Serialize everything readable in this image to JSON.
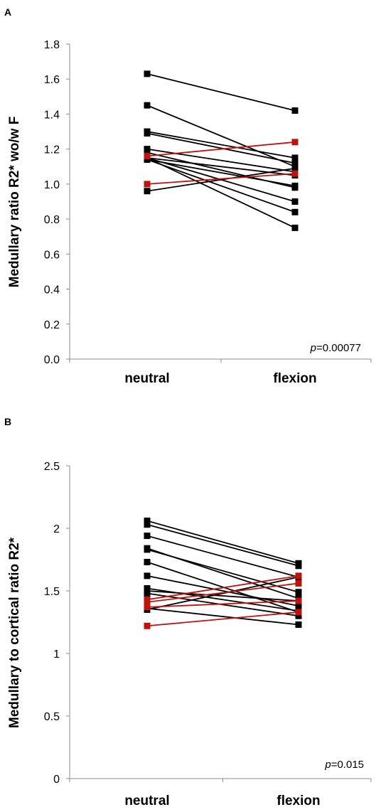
{
  "colors": {
    "black_series": "#000000",
    "red_series": "#c0120d",
    "axis": "#8c8c8c"
  },
  "chart_data": [
    {
      "panel_label": "A",
      "type": "line",
      "categories": [
        "neutral",
        "flexion"
      ],
      "ylabel": "Medullary ratio R2* wo/w F",
      "ylim": [
        0,
        1.8
      ],
      "yticks": [
        "0.0",
        "0.2",
        "0.4",
        "0.6",
        "0.8",
        "1.0",
        "1.2",
        "1.4",
        "1.6",
        "1.8"
      ],
      "ytick_values": [
        0,
        0.2,
        0.4,
        0.6,
        0.8,
        1.0,
        1.2,
        1.4,
        1.6,
        1.8
      ],
      "annotation_p": "p",
      "annotation_value": "=0.00077",
      "grid": false,
      "series": [
        {
          "values": [
            1.63,
            1.42
          ],
          "color": "black"
        },
        {
          "values": [
            1.45,
            1.1
          ],
          "color": "black"
        },
        {
          "values": [
            1.3,
            1.15
          ],
          "color": "black"
        },
        {
          "values": [
            1.29,
            1.12
          ],
          "color": "black"
        },
        {
          "values": [
            1.2,
            1.07
          ],
          "color": "black"
        },
        {
          "values": [
            1.18,
            0.98
          ],
          "color": "black"
        },
        {
          "values": [
            1.15,
            1.05
          ],
          "color": "black"
        },
        {
          "values": [
            1.14,
            0.99
          ],
          "color": "black"
        },
        {
          "values": [
            1.15,
            0.9
          ],
          "color": "black"
        },
        {
          "values": [
            1.14,
            0.84
          ],
          "color": "black"
        },
        {
          "values": [
            1.15,
            0.75
          ],
          "color": "black"
        },
        {
          "values": [
            0.96,
            1.09
          ],
          "color": "black"
        },
        {
          "values": [
            1.16,
            1.24
          ],
          "color": "red"
        },
        {
          "values": [
            1.0,
            1.06
          ],
          "color": "red"
        }
      ]
    },
    {
      "panel_label": "B",
      "type": "line",
      "categories": [
        "neutral",
        "flexion"
      ],
      "ylabel": "Medullary to cortical ratio R2*",
      "ylim": [
        0,
        2.5
      ],
      "yticks": [
        "0",
        "0.5",
        "1",
        "1.5",
        "2",
        "2.5"
      ],
      "ytick_values": [
        0,
        0.5,
        1,
        1.5,
        2,
        2.5
      ],
      "annotation_p": "p",
      "annotation_value": "=0.015",
      "grid": false,
      "series": [
        {
          "values": [
            2.06,
            1.72
          ],
          "color": "black"
        },
        {
          "values": [
            2.03,
            1.7
          ],
          "color": "black"
        },
        {
          "values": [
            1.94,
            1.61
          ],
          "color": "black"
        },
        {
          "values": [
            1.84,
            1.44
          ],
          "color": "black"
        },
        {
          "values": [
            1.83,
            1.49
          ],
          "color": "black"
        },
        {
          "values": [
            1.73,
            1.33
          ],
          "color": "black"
        },
        {
          "values": [
            1.62,
            1.38
          ],
          "color": "black"
        },
        {
          "values": [
            1.52,
            1.34
          ],
          "color": "black"
        },
        {
          "values": [
            1.5,
            1.42
          ],
          "color": "black"
        },
        {
          "values": [
            1.48,
            1.3
          ],
          "color": "black"
        },
        {
          "values": [
            1.36,
            1.23
          ],
          "color": "black"
        },
        {
          "values": [
            1.35,
            1.61
          ],
          "color": "black"
        },
        {
          "values": [
            1.43,
            1.62
          ],
          "color": "red"
        },
        {
          "values": [
            1.41,
            1.56
          ],
          "color": "red"
        },
        {
          "values": [
            1.37,
            1.42
          ],
          "color": "red"
        },
        {
          "values": [
            1.22,
            1.33
          ],
          "color": "red"
        }
      ]
    }
  ]
}
